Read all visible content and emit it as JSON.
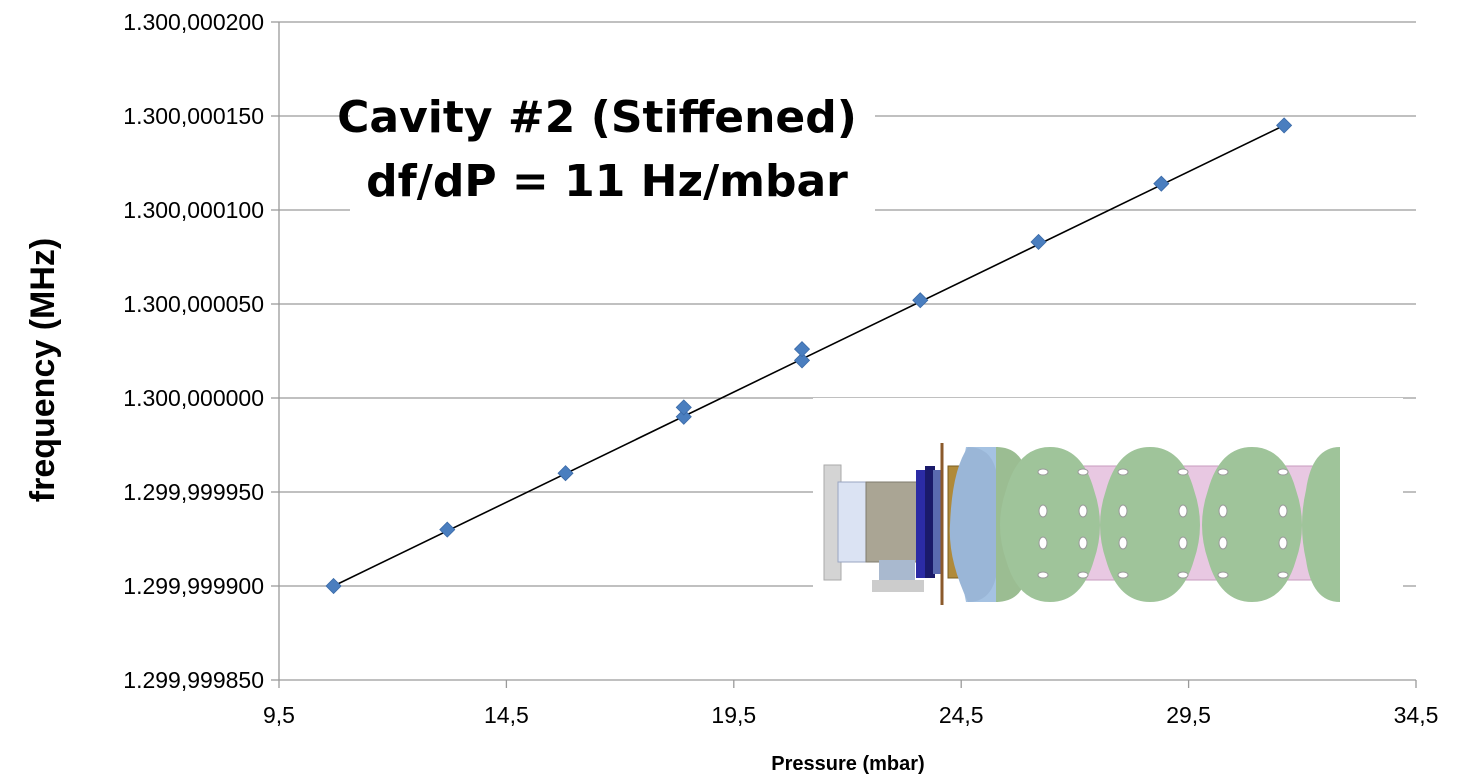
{
  "chart_data": {
    "type": "scatter",
    "title": "Cavity #2 (Stiffened)",
    "subtitle": "df/dP = 11 Hz/mbar",
    "xlabel": "Pressure  (mbar)",
    "ylabel": "frequency (MHz)",
    "xlim": [
      9.5,
      34.5
    ],
    "ylim": [
      1.29999985,
      1.3000002
    ],
    "x_ticks": [
      "9,5",
      "14,5",
      "19,5",
      "24,5",
      "29,5",
      "34,5"
    ],
    "y_ticks": [
      "1.299,999850",
      "1.299,999900",
      "1.299,999950",
      "1.300,000000",
      "1.300,000050",
      "1.300,000100",
      "1.300,000150",
      "1.300,000200"
    ],
    "grid": "horizontal",
    "series": [
      {
        "marker": "diamond",
        "color": "#4a7ebf",
        "x": [
          10.7,
          13.2,
          15.8,
          18.4,
          18.4,
          21.0,
          21.0,
          23.6,
          26.2,
          28.9,
          31.6
        ],
        "y": [
          1.2999999,
          1.29999993,
          1.29999996,
          1.29999999,
          1.299999995,
          1.30000002,
          1.300000026,
          1.300000052,
          1.300000083,
          1.300000114,
          1.300000145
        ]
      }
    ],
    "trendline": {
      "type": "linear",
      "color": "#000000",
      "x": [
        10.7,
        31.6
      ],
      "y": [
        1.2999999,
        1.300000145
      ]
    }
  }
}
